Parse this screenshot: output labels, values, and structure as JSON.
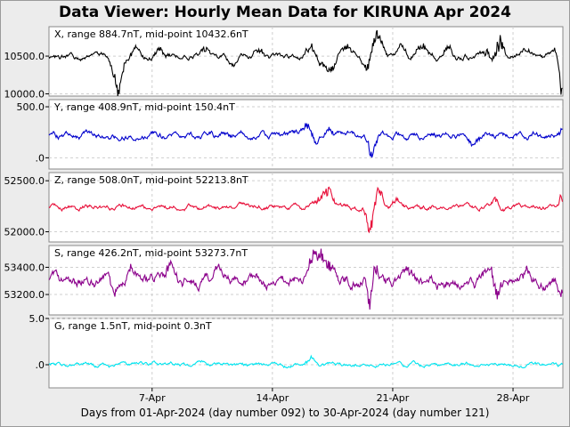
{
  "chart_data": {
    "type": "line",
    "title": "Data Viewer:  Hourly Mean Data for KIRUNA Apr 2024",
    "xlabel": "Days from 01-Apr-2024 (day number 092) to 30-Apr-2024 (day number 121)",
    "x_range_days": [
      0,
      29.9
    ],
    "x_ticks": [
      {
        "day": 6,
        "label": "7-Apr"
      },
      {
        "day": 13,
        "label": "14-Apr"
      },
      {
        "day": 20,
        "label": "21-Apr"
      },
      {
        "day": 27,
        "label": "28-Apr"
      }
    ],
    "grid": true,
    "panels": [
      {
        "name": "X",
        "label": "X, range 884.7nT, mid-point 10432.6nT",
        "color": "#000000",
        "ylim": [
          9970,
          10890
        ],
        "yticks": [
          {
            "v": 10000,
            "label": "10000.0"
          },
          {
            "v": 10500,
            "label": "10500.0"
          }
        ],
        "base": 10490,
        "noise": 22,
        "events": [
          [
            4.0,
            1.3,
            -420
          ],
          [
            5.0,
            1.5,
            90
          ],
          [
            6.5,
            1.2,
            120
          ],
          [
            9.0,
            1.5,
            120
          ],
          [
            10.6,
            1.2,
            -120
          ],
          [
            12.3,
            1.5,
            80
          ],
          [
            15.2,
            1.5,
            150
          ],
          [
            16.2,
            2.0,
            -160
          ],
          [
            17.3,
            1.6,
            110
          ],
          [
            18.6,
            1.7,
            -200
          ],
          [
            18.9,
            1.2,
            300
          ],
          [
            19.3,
            1.6,
            150
          ],
          [
            20.5,
            1.3,
            120
          ],
          [
            21.7,
            1.6,
            150
          ],
          [
            23.2,
            1.5,
            110
          ],
          [
            25.6,
            1.4,
            120
          ],
          [
            25.9,
            1.8,
            -140
          ],
          [
            26.2,
            1.2,
            280
          ],
          [
            27.7,
            1.2,
            100
          ],
          [
            29.3,
            1.4,
            110
          ],
          [
            29.85,
            0.8,
            -420
          ]
        ]
      },
      {
        "name": "Y",
        "label": "Y, range 408.9nT, mid-point 150.4nT",
        "color": "#0000cc",
        "ylim": [
          -110,
          570
        ],
        "yticks": [
          {
            "v": 0,
            "label": ".0"
          },
          {
            "v": 500,
            "label": "500.0"
          }
        ],
        "base": 220,
        "noise": 18,
        "events": [
          [
            15.0,
            1.6,
            90
          ],
          [
            15.5,
            1.2,
            -100
          ],
          [
            18.8,
            1.0,
            -200
          ],
          [
            16.5,
            1.5,
            60
          ],
          [
            24.8,
            1.4,
            -80
          ],
          [
            29.8,
            1.0,
            60
          ]
        ]
      },
      {
        "name": "Z",
        "label": "Z, range 508.0nT, mid-point 52213.8nT",
        "color": "#e8103a",
        "ylim": [
          51900,
          52580
        ],
        "yticks": [
          {
            "v": 52000,
            "label": "52000.0"
          },
          {
            "v": 52500,
            "label": "52500.0"
          }
        ],
        "base": 52240,
        "noise": 14,
        "events": [
          [
            15.8,
            1.4,
            110
          ],
          [
            16.3,
            1.2,
            160
          ],
          [
            18.7,
            1.0,
            -220
          ],
          [
            19.2,
            1.2,
            170
          ],
          [
            20.3,
            1.4,
            90
          ],
          [
            26.0,
            1.4,
            80
          ],
          [
            26.3,
            1.0,
            -90
          ],
          [
            29.8,
            0.8,
            130
          ]
        ]
      },
      {
        "name": "S",
        "label": "S, range 426.2nT, mid-point 53273.7nT",
        "color": "#8b008b",
        "ylim": [
          53050,
          53560
        ],
        "yticks": [
          {
            "v": 53200,
            "label": "53200.0"
          },
          {
            "v": 53400,
            "label": "53400.0"
          }
        ],
        "base": 53300,
        "noise": 25,
        "events": [
          [
            3.8,
            1.0,
            -110
          ],
          [
            4.8,
            1.4,
            100
          ],
          [
            7.0,
            1.4,
            90
          ],
          [
            9.8,
            1.2,
            80
          ],
          [
            15.3,
            1.3,
            140
          ],
          [
            15.7,
            1.5,
            180
          ],
          [
            16.4,
            2.0,
            110
          ],
          [
            18.7,
            0.8,
            -210
          ],
          [
            18.9,
            1.0,
            160
          ],
          [
            20.8,
            1.4,
            90
          ],
          [
            25.6,
            1.4,
            110
          ],
          [
            26.1,
            1.2,
            -120
          ],
          [
            27.7,
            1.2,
            100
          ],
          [
            29.8,
            0.8,
            -80
          ]
        ]
      },
      {
        "name": "G",
        "label": "G, range 1.5nT, mid-point 0.3nT",
        "color": "#00e5f0",
        "ylim": [
          -2.5,
          5.0
        ],
        "yticks": [
          {
            "v": 0,
            "label": ".0"
          },
          {
            "v": 5.0,
            "label": "5.0"
          }
        ],
        "base": 0.0,
        "noise": 0.12,
        "events": [
          [
            15.2,
            1.2,
            0.7
          ],
          [
            16.0,
            2.0,
            0.3
          ],
          [
            9.0,
            3.0,
            0.2
          ]
        ]
      }
    ]
  }
}
